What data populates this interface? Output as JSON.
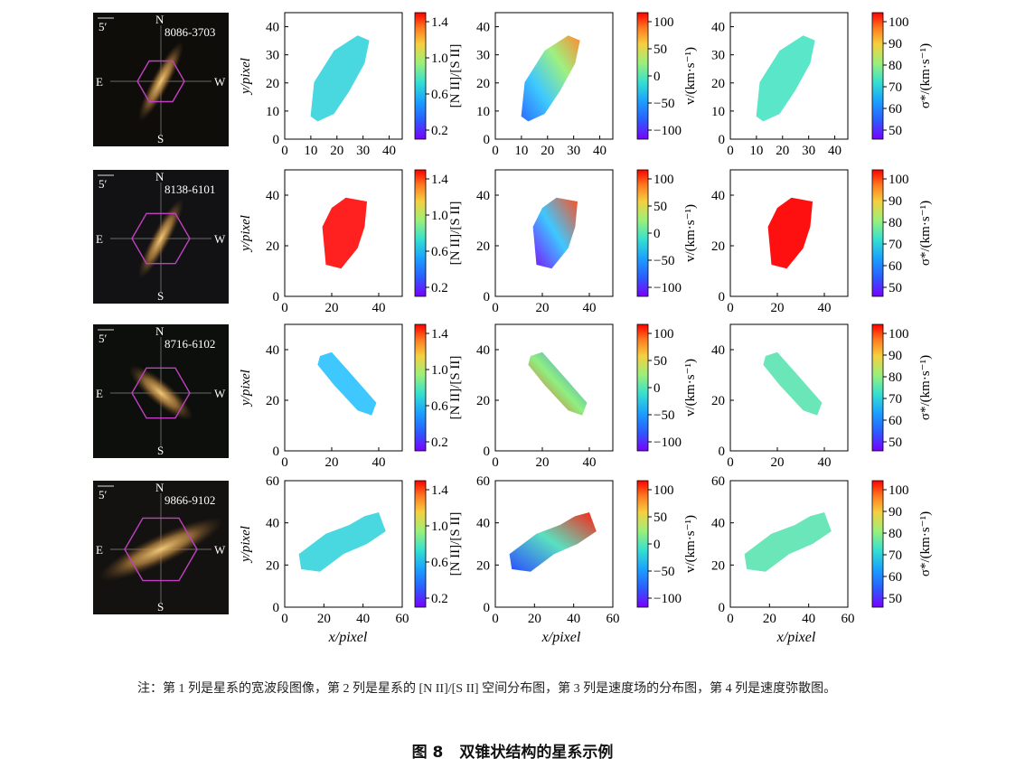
{
  "rows": [
    {
      "id": "8086-3703",
      "tile_color": "#0f0d0a",
      "ylim": [
        0,
        45
      ],
      "yticks": [
        0,
        10,
        20,
        30,
        40
      ],
      "xlim": [
        0,
        45
      ],
      "xticks": [
        0,
        10,
        20,
        30,
        40
      ]
    },
    {
      "id": "8138-6101",
      "tile_color": "#121214",
      "ylim": [
        0,
        50
      ],
      "yticks": [
        0,
        20,
        40
      ],
      "xlim": [
        0,
        50
      ],
      "xticks": [
        0,
        20,
        40
      ]
    },
    {
      "id": "8716-6102",
      "tile_color": "#0d0f0c",
      "ylim": [
        0,
        50
      ],
      "yticks": [
        0,
        20,
        40
      ],
      "xlim": [
        0,
        50
      ],
      "xticks": [
        0,
        20,
        40
      ]
    },
    {
      "id": "9866-9102",
      "tile_color": "#141210",
      "ylim": [
        0,
        60
      ],
      "yticks": [
        0,
        20,
        40,
        60
      ],
      "xlim": [
        0,
        60
      ],
      "xticks": [
        0,
        20,
        40,
        60
      ]
    }
  ],
  "compass": {
    "n": "N",
    "s": "S",
    "e": "E",
    "w": "W",
    "scale": "5′"
  },
  "axes": {
    "xlabel": "x/pixel",
    "ylabel": "y/pixel"
  },
  "colorbars": [
    {
      "label": "[N II]/[S II]",
      "ticks": [
        "1.4",
        "1.0",
        "0.6",
        "0.2"
      ]
    },
    {
      "label": "v/(km·s⁻¹)",
      "ticks": [
        "100",
        "50",
        "0",
        "−50",
        "−100"
      ]
    },
    {
      "label": "σ*/(km·s⁻¹)",
      "ticks": [
        "100",
        "90",
        "80",
        "70",
        "60",
        "50"
      ]
    }
  ],
  "note": "注：第 1 列是星系的宽波段图像，第 2 列是星系的 [N II]/[S II] 空间分布图，第 3 列是速度场的分布图，第 4 列是速度弥散图。",
  "caption": {
    "number": "图 8",
    "title": "双锥状结构的星系示例"
  },
  "colors": {
    "hexagon": "#c040c0",
    "galaxy": "#c8a060"
  }
}
